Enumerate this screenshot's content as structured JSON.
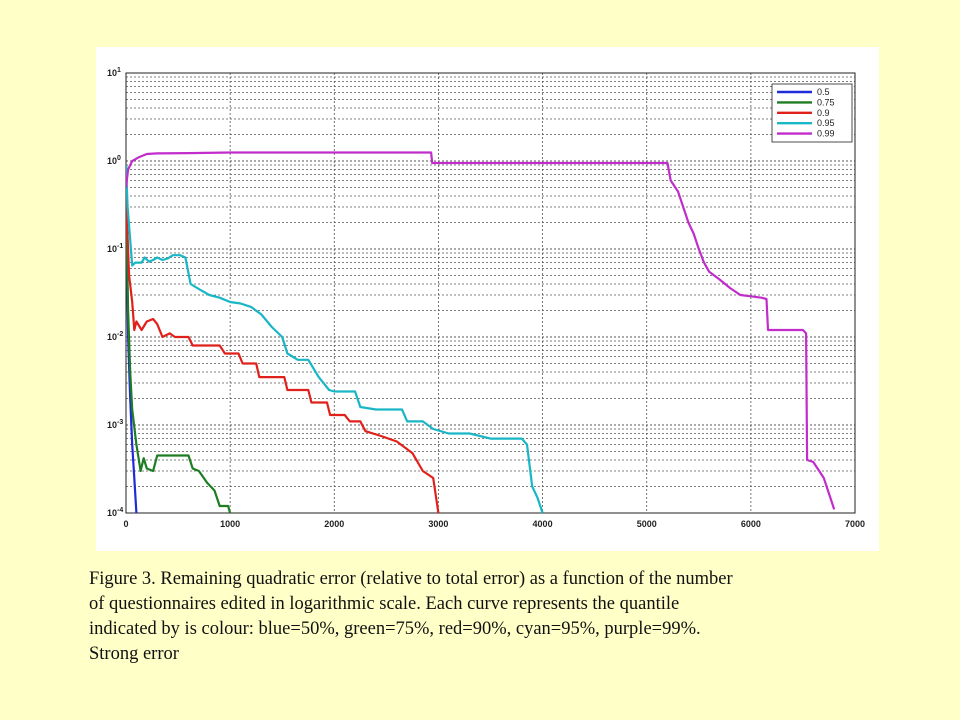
{
  "caption": {
    "line1": "Figure 3. Remaining quadratic error (relative to total error) as a function of the number",
    "line2": "of questionnaires edited in logarithmic scale. Each curve represents the quantile",
    "line3": "indicated by is colour: blue=50%, green=75%, red=90%, cyan=95%, purple=99%.",
    "line4": "Strong error"
  },
  "chart_data": {
    "type": "line",
    "title": "",
    "xlabel": "",
    "ylabel": "",
    "xlim": [
      0,
      7000
    ],
    "ylim": [
      0.0001,
      10
    ],
    "yscale": "log",
    "grid": true,
    "legend_position": "top-right",
    "x_ticks": [
      0,
      1000,
      2000,
      3000,
      4000,
      5000,
      6000,
      7000
    ],
    "x_tick_labels": [
      "0",
      "1000",
      "2000",
      "3000",
      "4000",
      "5000",
      "6000",
      "7000"
    ],
    "y_ticks": [
      0.0001,
      0.001,
      0.01,
      0.1,
      1,
      10
    ],
    "y_tick_labels": [
      "10^-4",
      "10^-3",
      "10^-2",
      "10^-1",
      "10^0",
      "10^1"
    ],
    "series": [
      {
        "name": "0.5",
        "color": "#1F2BD8",
        "points": [
          [
            0,
            0.9
          ],
          [
            10,
            0.08
          ],
          [
            20,
            0.01
          ],
          [
            40,
            0.002
          ],
          [
            60,
            0.0006
          ],
          [
            80,
            0.00025
          ],
          [
            100,
            0.0001
          ]
        ]
      },
      {
        "name": "0.75",
        "color": "#1E7D22",
        "points": [
          [
            0,
            0.9
          ],
          [
            10,
            0.1
          ],
          [
            20,
            0.02
          ],
          [
            40,
            0.004
          ],
          [
            60,
            0.0015
          ],
          [
            100,
            0.0006
          ],
          [
            140,
            0.0003
          ],
          [
            170,
            0.00042
          ],
          [
            200,
            0.00032
          ],
          [
            260,
            0.0003
          ],
          [
            300,
            0.00045
          ],
          [
            350,
            0.00045
          ],
          [
            600,
            0.00045
          ],
          [
            640,
            0.00032
          ],
          [
            700,
            0.0003
          ],
          [
            780,
            0.00022
          ],
          [
            850,
            0.00018
          ],
          [
            900,
            0.00012
          ],
          [
            980,
            0.00012
          ],
          [
            1000,
            0.0001
          ]
        ]
      },
      {
        "name": "0.9",
        "color": "#E0211B",
        "points": [
          [
            0,
            0.9
          ],
          [
            10,
            0.2
          ],
          [
            30,
            0.05
          ],
          [
            60,
            0.025
          ],
          [
            80,
            0.012
          ],
          [
            100,
            0.015
          ],
          [
            150,
            0.012
          ],
          [
            200,
            0.015
          ],
          [
            260,
            0.016
          ],
          [
            300,
            0.014
          ],
          [
            350,
            0.01
          ],
          [
            420,
            0.011
          ],
          [
            470,
            0.01
          ],
          [
            600,
            0.01
          ],
          [
            640,
            0.008
          ],
          [
            900,
            0.008
          ],
          [
            950,
            0.0065
          ],
          [
            1080,
            0.0065
          ],
          [
            1120,
            0.005
          ],
          [
            1250,
            0.005
          ],
          [
            1280,
            0.0035
          ],
          [
            1520,
            0.0035
          ],
          [
            1550,
            0.0025
          ],
          [
            1750,
            0.0025
          ],
          [
            1780,
            0.0018
          ],
          [
            1930,
            0.0018
          ],
          [
            1960,
            0.0013
          ],
          [
            2100,
            0.0013
          ],
          [
            2150,
            0.0011
          ],
          [
            2250,
            0.0011
          ],
          [
            2300,
            0.00085
          ],
          [
            2450,
            0.00075
          ],
          [
            2600,
            0.00065
          ],
          [
            2750,
            0.00048
          ],
          [
            2850,
            0.0003
          ],
          [
            2950,
            0.00025
          ],
          [
            3000,
            0.0001
          ]
        ]
      },
      {
        "name": "0.95",
        "color": "#19B6C6",
        "points": [
          [
            0,
            0.9
          ],
          [
            15,
            0.3
          ],
          [
            60,
            0.065
          ],
          [
            90,
            0.07
          ],
          [
            150,
            0.07
          ],
          [
            180,
            0.08
          ],
          [
            220,
            0.072
          ],
          [
            260,
            0.075
          ],
          [
            300,
            0.08
          ],
          [
            350,
            0.075
          ],
          [
            400,
            0.078
          ],
          [
            450,
            0.085
          ],
          [
            520,
            0.085
          ],
          [
            570,
            0.08
          ],
          [
            620,
            0.04
          ],
          [
            700,
            0.035
          ],
          [
            800,
            0.03
          ],
          [
            900,
            0.028
          ],
          [
            1000,
            0.025
          ],
          [
            1100,
            0.024
          ],
          [
            1200,
            0.022
          ],
          [
            1300,
            0.018
          ],
          [
            1400,
            0.013
          ],
          [
            1500,
            0.01
          ],
          [
            1550,
            0.0065
          ],
          [
            1650,
            0.0055
          ],
          [
            1750,
            0.0055
          ],
          [
            1850,
            0.0035
          ],
          [
            1950,
            0.0025
          ],
          [
            2000,
            0.0024
          ],
          [
            2200,
            0.0024
          ],
          [
            2250,
            0.0016
          ],
          [
            2400,
            0.0015
          ],
          [
            2650,
            0.0015
          ],
          [
            2700,
            0.0011
          ],
          [
            2850,
            0.0011
          ],
          [
            2950,
            0.0009
          ],
          [
            3100,
            0.0008
          ],
          [
            3300,
            0.0008
          ],
          [
            3500,
            0.0007
          ],
          [
            3800,
            0.0007
          ],
          [
            3850,
            0.0006
          ],
          [
            3900,
            0.0002
          ],
          [
            3950,
            0.00015
          ],
          [
            4000,
            0.0001
          ]
        ]
      },
      {
        "name": "0.99",
        "color": "#C02DCB",
        "points": [
          [
            0,
            0.5
          ],
          [
            20,
            0.8
          ],
          [
            60,
            1.0
          ],
          [
            120,
            1.1
          ],
          [
            200,
            1.2
          ],
          [
            300,
            1.22
          ],
          [
            600,
            1.23
          ],
          [
            1000,
            1.25
          ],
          [
            2800,
            1.25
          ],
          [
            2930,
            1.25
          ],
          [
            2940,
            0.95
          ],
          [
            5200,
            0.95
          ],
          [
            5230,
            0.6
          ],
          [
            5300,
            0.45
          ],
          [
            5350,
            0.3
          ],
          [
            5400,
            0.2
          ],
          [
            5450,
            0.15
          ],
          [
            5500,
            0.1
          ],
          [
            5550,
            0.07
          ],
          [
            5600,
            0.055
          ],
          [
            5700,
            0.045
          ],
          [
            5800,
            0.036
          ],
          [
            5900,
            0.03
          ],
          [
            6000,
            0.029
          ],
          [
            6100,
            0.028
          ],
          [
            6150,
            0.027
          ],
          [
            6165,
            0.012
          ],
          [
            6500,
            0.012
          ],
          [
            6530,
            0.011
          ],
          [
            6540,
            0.0004
          ],
          [
            6600,
            0.00038
          ],
          [
            6700,
            0.00025
          ],
          [
            6780,
            0.00013
          ],
          [
            6800,
            0.00011
          ]
        ]
      }
    ]
  }
}
